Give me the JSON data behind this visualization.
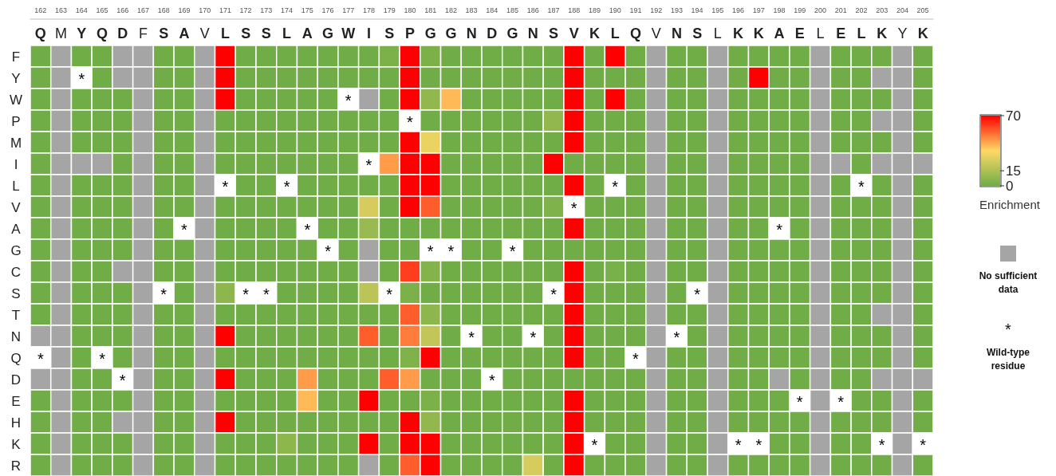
{
  "chart_data": {
    "type": "heatmap",
    "clabel": "Enrichment",
    "clim": [
      0,
      70
    ],
    "cticks": [
      0,
      15,
      70
    ],
    "x2lim": [
      161.5,
      205.5
    ],
    "x2ticks": [
      162,
      163,
      164,
      165,
      166,
      167,
      168,
      169,
      170,
      171,
      172,
      173,
      174,
      175,
      176,
      177,
      178,
      179,
      180,
      181,
      182,
      183,
      184,
      185,
      186,
      187,
      188,
      189,
      190,
      191,
      192,
      193,
      194,
      195,
      196,
      197,
      198,
      199,
      200,
      201,
      202,
      203,
      204,
      205
    ],
    "categories": [
      "Q",
      "M",
      "Y",
      "Q",
      "D",
      "F",
      "S",
      "A",
      "V",
      "L",
      "S",
      "S",
      "L",
      "A",
      "G",
      "W",
      "I",
      "S",
      "P",
      "G",
      "G",
      "N",
      "D",
      "G",
      "N",
      "S",
      "V",
      "K",
      "L",
      "Q",
      "V",
      "N",
      "S",
      "L",
      "K",
      "K",
      "A",
      "E",
      "L",
      "E",
      "L",
      "K",
      "Y",
      "K"
    ],
    "y_categories": [
      "F",
      "Y",
      "W",
      "P",
      "M",
      "I",
      "L",
      "V",
      "A",
      "G",
      "C",
      "S",
      "T",
      "N",
      "Q",
      "D",
      "E",
      "H",
      "K",
      "R"
    ],
    "cells": [
      [
        0,
        null,
        0,
        0,
        null,
        null,
        0,
        0,
        null,
        70,
        0,
        0,
        0,
        0,
        0,
        0,
        0,
        3,
        70,
        3,
        0,
        0,
        0,
        0,
        0,
        0,
        70,
        0,
        70,
        0,
        null,
        0,
        0,
        null,
        0,
        0,
        0,
        0,
        null,
        0,
        0,
        0,
        null,
        0
      ],
      [
        0,
        null,
        null,
        0,
        null,
        null,
        0,
        0,
        null,
        70,
        0,
        0,
        0,
        0,
        0,
        0,
        0,
        0,
        70,
        0,
        0,
        0,
        0,
        0,
        0,
        0,
        70,
        0,
        0,
        0,
        null,
        0,
        0,
        null,
        0,
        70,
        0,
        0,
        null,
        0,
        0,
        null,
        null,
        0
      ],
      [
        0,
        null,
        0,
        0,
        0,
        null,
        0,
        0,
        null,
        70,
        0,
        0,
        0,
        0,
        0,
        null,
        null,
        0,
        70,
        8,
        40,
        0,
        0,
        0,
        0,
        0,
        70,
        0,
        70,
        0,
        null,
        0,
        0,
        null,
        0,
        0,
        0,
        0,
        null,
        0,
        0,
        0,
        null,
        0
      ],
      [
        0,
        null,
        0,
        0,
        0,
        null,
        0,
        0,
        null,
        0,
        0,
        0,
        0,
        0,
        0,
        0,
        0,
        0,
        null,
        0,
        0,
        0,
        0,
        0,
        0,
        8,
        70,
        0,
        0,
        0,
        null,
        0,
        0,
        null,
        0,
        0,
        0,
        0,
        null,
        0,
        0,
        null,
        null,
        0
      ],
      [
        0,
        null,
        0,
        0,
        0,
        null,
        0,
        0,
        null,
        0,
        0,
        0,
        0,
        0,
        0,
        0,
        0,
        0,
        70,
        30,
        0,
        0,
        0,
        0,
        0,
        0,
        70,
        0,
        0,
        0,
        null,
        0,
        0,
        null,
        0,
        0,
        0,
        0,
        null,
        0,
        0,
        0,
        null,
        0
      ],
      [
        0,
        null,
        null,
        null,
        0,
        null,
        0,
        0,
        null,
        0,
        0,
        0,
        0,
        0,
        0,
        0,
        null,
        45,
        70,
        70,
        0,
        0,
        0,
        0,
        0,
        70,
        0,
        0,
        0,
        0,
        null,
        0,
        0,
        null,
        0,
        0,
        0,
        0,
        null,
        null,
        0,
        null,
        null,
        null
      ],
      [
        0,
        null,
        0,
        0,
        0,
        null,
        0,
        0,
        null,
        null,
        0,
        0,
        null,
        0,
        0,
        0,
        0,
        0,
        70,
        70,
        0,
        0,
        0,
        0,
        0,
        0,
        70,
        0,
        null,
        0,
        null,
        0,
        0,
        null,
        0,
        0,
        0,
        0,
        null,
        0,
        null,
        0,
        null,
        0
      ],
      [
        0,
        null,
        0,
        0,
        0,
        null,
        0,
        0,
        null,
        0,
        0,
        0,
        0,
        0,
        0,
        0,
        25,
        0,
        70,
        55,
        0,
        0,
        0,
        0,
        0,
        4,
        null,
        0,
        0,
        0,
        null,
        0,
        0,
        null,
        0,
        0,
        0,
        0,
        null,
        0,
        0,
        0,
        null,
        0
      ],
      [
        0,
        null,
        0,
        0,
        0,
        null,
        0,
        null,
        null,
        0,
        0,
        0,
        0,
        null,
        0,
        0,
        10,
        0,
        0,
        0,
        0,
        0,
        0,
        0,
        0,
        0,
        70,
        0,
        0,
        0,
        null,
        0,
        0,
        null,
        0,
        0,
        null,
        0,
        null,
        0,
        0,
        0,
        null,
        0
      ],
      [
        0,
        null,
        0,
        0,
        0,
        null,
        0,
        0,
        null,
        0,
        0,
        0,
        0,
        0,
        null,
        0,
        null,
        0,
        0,
        null,
        null,
        0,
        0,
        null,
        0,
        0,
        0,
        0,
        0,
        0,
        null,
        0,
        0,
        null,
        0,
        0,
        0,
        0,
        null,
        0,
        0,
        0,
        null,
        0
      ],
      [
        0,
        null,
        0,
        0,
        null,
        null,
        0,
        0,
        null,
        0,
        0,
        0,
        0,
        0,
        0,
        0,
        null,
        0,
        60,
        5,
        0,
        0,
        0,
        0,
        0,
        0,
        70,
        0,
        2,
        0,
        null,
        0,
        0,
        null,
        0,
        0,
        0,
        0,
        null,
        0,
        0,
        0,
        null,
        0
      ],
      [
        0,
        null,
        0,
        0,
        0,
        null,
        null,
        0,
        null,
        7,
        null,
        null,
        0,
        0,
        0,
        0,
        18,
        null,
        3,
        0,
        0,
        0,
        0,
        0,
        0,
        null,
        70,
        0,
        0,
        0,
        null,
        0,
        null,
        null,
        0,
        0,
        0,
        0,
        null,
        0,
        0,
        0,
        null,
        0
      ],
      [
        0,
        null,
        0,
        0,
        0,
        null,
        0,
        0,
        null,
        0,
        0,
        0,
        0,
        0,
        0,
        0,
        0,
        0,
        55,
        7,
        0,
        0,
        0,
        0,
        0,
        0,
        70,
        0,
        0,
        0,
        null,
        0,
        0,
        null,
        0,
        0,
        0,
        0,
        null,
        0,
        0,
        null,
        null,
        0
      ],
      [
        null,
        null,
        0,
        0,
        0,
        null,
        0,
        0,
        null,
        70,
        0,
        0,
        0,
        0,
        0,
        0,
        55,
        0,
        50,
        20,
        0,
        null,
        0,
        0,
        null,
        0,
        70,
        0,
        0,
        0,
        null,
        null,
        0,
        null,
        0,
        0,
        0,
        0,
        null,
        0,
        0,
        0,
        null,
        0
      ],
      [
        null,
        null,
        0,
        null,
        0,
        null,
        0,
        0,
        null,
        0,
        0,
        0,
        0,
        0,
        0,
        0,
        0,
        0,
        4,
        70,
        0,
        0,
        0,
        0,
        0,
        0,
        70,
        0,
        0,
        null,
        null,
        0,
        0,
        null,
        0,
        0,
        0,
        0,
        null,
        0,
        0,
        0,
        null,
        0
      ],
      [
        null,
        null,
        0,
        0,
        null,
        null,
        0,
        0,
        null,
        70,
        0,
        0,
        0,
        45,
        0,
        0,
        0,
        55,
        45,
        0,
        0,
        0,
        null,
        0,
        0,
        0,
        0,
        0,
        0,
        0,
        null,
        0,
        0,
        null,
        0,
        0,
        null,
        0,
        null,
        0,
        0,
        null,
        null,
        null
      ],
      [
        0,
        null,
        0,
        0,
        0,
        null,
        0,
        0,
        null,
        0,
        0,
        0,
        0,
        40,
        0,
        0,
        70,
        0,
        0,
        3,
        0,
        0,
        0,
        0,
        0,
        0,
        70,
        0,
        0,
        0,
        null,
        0,
        0,
        null,
        0,
        0,
        0,
        null,
        null,
        null,
        0,
        0,
        null,
        0
      ],
      [
        0,
        null,
        0,
        0,
        null,
        null,
        0,
        0,
        null,
        70,
        0,
        0,
        0,
        0,
        0,
        0,
        0,
        0,
        70,
        8,
        0,
        0,
        0,
        0,
        0,
        0,
        70,
        0,
        0,
        0,
        null,
        0,
        0,
        null,
        0,
        0,
        0,
        0,
        null,
        0,
        0,
        0,
        null,
        0
      ],
      [
        0,
        null,
        0,
        0,
        0,
        null,
        0,
        0,
        null,
        0,
        0,
        0,
        7,
        0,
        0,
        0,
        70,
        0,
        70,
        70,
        0,
        0,
        0,
        0,
        0,
        0,
        70,
        null,
        0,
        0,
        null,
        0,
        0,
        null,
        null,
        null,
        0,
        0,
        null,
        0,
        0,
        null,
        null,
        null
      ],
      [
        0,
        null,
        0,
        0,
        0,
        null,
        0,
        0,
        null,
        0,
        0,
        0,
        0,
        0,
        0,
        0,
        null,
        0,
        55,
        70,
        0,
        0,
        0,
        0,
        25,
        0,
        70,
        0,
        0,
        0,
        null,
        0,
        0,
        null,
        0,
        0,
        0,
        0,
        null,
        0,
        0,
        0,
        null,
        0
      ]
    ],
    "cell_labels": [
      [
        null,
        null,
        null,
        null,
        null,
        null,
        null,
        null,
        null,
        null,
        null,
        null,
        null,
        null,
        null,
        null,
        null,
        null,
        null,
        null,
        null,
        null,
        null,
        null,
        null,
        null,
        null,
        null,
        null,
        null,
        null,
        null,
        null,
        null,
        null,
        null,
        null,
        null,
        null,
        null,
        null,
        null,
        null,
        null
      ],
      [
        null,
        null,
        "*",
        null,
        null,
        null,
        null,
        null,
        null,
        null,
        null,
        null,
        null,
        null,
        null,
        null,
        null,
        null,
        null,
        null,
        null,
        null,
        null,
        null,
        null,
        null,
        null,
        null,
        null,
        null,
        null,
        null,
        null,
        null,
        null,
        null,
        null,
        null,
        null,
        null,
        null,
        null,
        null,
        null
      ],
      [
        null,
        null,
        null,
        null,
        null,
        null,
        null,
        null,
        null,
        null,
        null,
        null,
        null,
        null,
        null,
        "*",
        null,
        null,
        null,
        null,
        null,
        null,
        null,
        null,
        null,
        null,
        null,
        null,
        null,
        null,
        null,
        null,
        null,
        null,
        null,
        null,
        null,
        null,
        null,
        null,
        null,
        null,
        null,
        null
      ],
      [
        null,
        null,
        null,
        null,
        null,
        null,
        null,
        null,
        null,
        null,
        null,
        null,
        null,
        null,
        null,
        null,
        null,
        null,
        "*",
        null,
        null,
        null,
        null,
        null,
        null,
        null,
        null,
        null,
        null,
        null,
        null,
        null,
        null,
        null,
        null,
        null,
        null,
        null,
        null,
        null,
        null,
        null,
        null,
        null
      ],
      [
        null,
        null,
        null,
        null,
        null,
        null,
        null,
        null,
        null,
        null,
        null,
        null,
        null,
        null,
        null,
        null,
        null,
        null,
        null,
        null,
        null,
        null,
        null,
        null,
        null,
        null,
        null,
        null,
        null,
        null,
        null,
        null,
        null,
        null,
        null,
        null,
        null,
        null,
        null,
        null,
        null,
        null,
        null,
        null
      ],
      [
        null,
        null,
        null,
        null,
        null,
        null,
        null,
        null,
        null,
        null,
        null,
        null,
        null,
        null,
        null,
        null,
        "*",
        null,
        null,
        null,
        null,
        null,
        null,
        null,
        null,
        null,
        null,
        null,
        null,
        null,
        null,
        null,
        null,
        null,
        null,
        null,
        null,
        null,
        null,
        null,
        null,
        null,
        null,
        null
      ],
      [
        null,
        null,
        null,
        null,
        null,
        null,
        null,
        null,
        null,
        "*",
        null,
        null,
        "*",
        null,
        null,
        null,
        null,
        null,
        null,
        null,
        null,
        null,
        null,
        null,
        null,
        null,
        null,
        null,
        "*",
        null,
        null,
        null,
        null,
        null,
        null,
        null,
        null,
        null,
        null,
        null,
        "*",
        null,
        null,
        null
      ],
      [
        null,
        null,
        null,
        null,
        null,
        null,
        null,
        null,
        null,
        null,
        null,
        null,
        null,
        null,
        null,
        null,
        null,
        null,
        null,
        null,
        null,
        null,
        null,
        null,
        null,
        null,
        "*",
        null,
        null,
        null,
        null,
        null,
        null,
        null,
        null,
        null,
        null,
        null,
        null,
        null,
        null,
        null,
        null,
        null
      ],
      [
        null,
        null,
        null,
        null,
        null,
        null,
        null,
        "*",
        null,
        null,
        null,
        null,
        null,
        "*",
        null,
        null,
        null,
        null,
        null,
        null,
        null,
        null,
        null,
        null,
        null,
        null,
        null,
        null,
        null,
        null,
        null,
        null,
        null,
        null,
        null,
        null,
        "*",
        null,
        null,
        null,
        null,
        null,
        null,
        null
      ],
      [
        null,
        null,
        null,
        null,
        null,
        null,
        null,
        null,
        null,
        null,
        null,
        null,
        null,
        null,
        "*",
        null,
        null,
        null,
        null,
        "*",
        "*",
        null,
        null,
        "*",
        null,
        null,
        null,
        null,
        null,
        null,
        null,
        null,
        null,
        null,
        null,
        null,
        null,
        null,
        null,
        null,
        null,
        null,
        null,
        null
      ],
      [
        null,
        null,
        null,
        null,
        null,
        null,
        null,
        null,
        null,
        null,
        null,
        null,
        null,
        null,
        null,
        null,
        null,
        null,
        null,
        null,
        null,
        null,
        null,
        null,
        null,
        null,
        null,
        null,
        null,
        null,
        null,
        null,
        null,
        null,
        null,
        null,
        null,
        null,
        null,
        null,
        null,
        null,
        null,
        null
      ],
      [
        null,
        null,
        null,
        null,
        null,
        null,
        "*",
        null,
        null,
        null,
        "*",
        "*",
        null,
        null,
        null,
        null,
        null,
        "*",
        null,
        null,
        null,
        null,
        null,
        null,
        null,
        "*",
        null,
        null,
        null,
        null,
        null,
        null,
        "*",
        null,
        null,
        null,
        null,
        null,
        null,
        null,
        null,
        null,
        null,
        null
      ],
      [
        null,
        null,
        null,
        null,
        null,
        null,
        null,
        null,
        null,
        null,
        null,
        null,
        null,
        null,
        null,
        null,
        null,
        null,
        null,
        null,
        null,
        null,
        null,
        null,
        null,
        null,
        null,
        null,
        null,
        null,
        null,
        null,
        null,
        null,
        null,
        null,
        null,
        null,
        null,
        null,
        null,
        null,
        null,
        null
      ],
      [
        null,
        null,
        null,
        null,
        null,
        null,
        null,
        null,
        null,
        null,
        null,
        null,
        null,
        null,
        null,
        null,
        null,
        null,
        null,
        null,
        null,
        "*",
        null,
        null,
        "*",
        null,
        null,
        null,
        null,
        null,
        null,
        "*",
        null,
        null,
        null,
        null,
        null,
        null,
        null,
        null,
        null,
        null,
        null,
        null
      ],
      [
        "*",
        null,
        null,
        "*",
        null,
        null,
        null,
        null,
        null,
        null,
        null,
        null,
        null,
        null,
        null,
        null,
        null,
        null,
        null,
        null,
        null,
        null,
        null,
        null,
        null,
        null,
        null,
        null,
        null,
        "*",
        null,
        null,
        null,
        null,
        null,
        null,
        null,
        null,
        null,
        null,
        null,
        null,
        null,
        null
      ],
      [
        null,
        null,
        null,
        null,
        "*",
        null,
        null,
        null,
        null,
        null,
        null,
        null,
        null,
        null,
        null,
        null,
        null,
        null,
        null,
        null,
        null,
        null,
        "*",
        null,
        null,
        null,
        null,
        null,
        null,
        null,
        null,
        null,
        null,
        null,
        null,
        null,
        null,
        null,
        null,
        null,
        null,
        null,
        null,
        null
      ],
      [
        null,
        null,
        null,
        null,
        null,
        null,
        null,
        null,
        null,
        null,
        null,
        null,
        null,
        null,
        null,
        null,
        null,
        null,
        null,
        null,
        null,
        null,
        null,
        null,
        null,
        null,
        null,
        null,
        null,
        null,
        null,
        null,
        null,
        null,
        null,
        null,
        null,
        "*",
        null,
        "*",
        null,
        null,
        null,
        null
      ],
      [
        null,
        null,
        null,
        null,
        null,
        null,
        null,
        null,
        null,
        null,
        null,
        null,
        null,
        null,
        null,
        null,
        null,
        null,
        null,
        null,
        null,
        null,
        null,
        null,
        null,
        null,
        null,
        null,
        null,
        null,
        null,
        null,
        null,
        null,
        null,
        null,
        null,
        null,
        null,
        null,
        null,
        null,
        null,
        null
      ],
      [
        null,
        null,
        null,
        null,
        null,
        null,
        null,
        null,
        null,
        null,
        null,
        null,
        null,
        null,
        null,
        null,
        null,
        null,
        null,
        null,
        null,
        null,
        null,
        null,
        null,
        null,
        null,
        "*",
        null,
        null,
        null,
        null,
        null,
        null,
        "*",
        "*",
        null,
        null,
        null,
        null,
        null,
        "*",
        null,
        "*"
      ],
      [
        null,
        null,
        null,
        null,
        null,
        null,
        null,
        null,
        null,
        null,
        null,
        null,
        null,
        null,
        null,
        null,
        null,
        null,
        null,
        null,
        null,
        null,
        null,
        null,
        null,
        null,
        null,
        null,
        null,
        null,
        null,
        null,
        null,
        null,
        null,
        null,
        null,
        null,
        null,
        null,
        null,
        null,
        null,
        null
      ]
    ],
    "annotations": [
      "No sufficient data",
      "Wild-type residue"
    ]
  }
}
